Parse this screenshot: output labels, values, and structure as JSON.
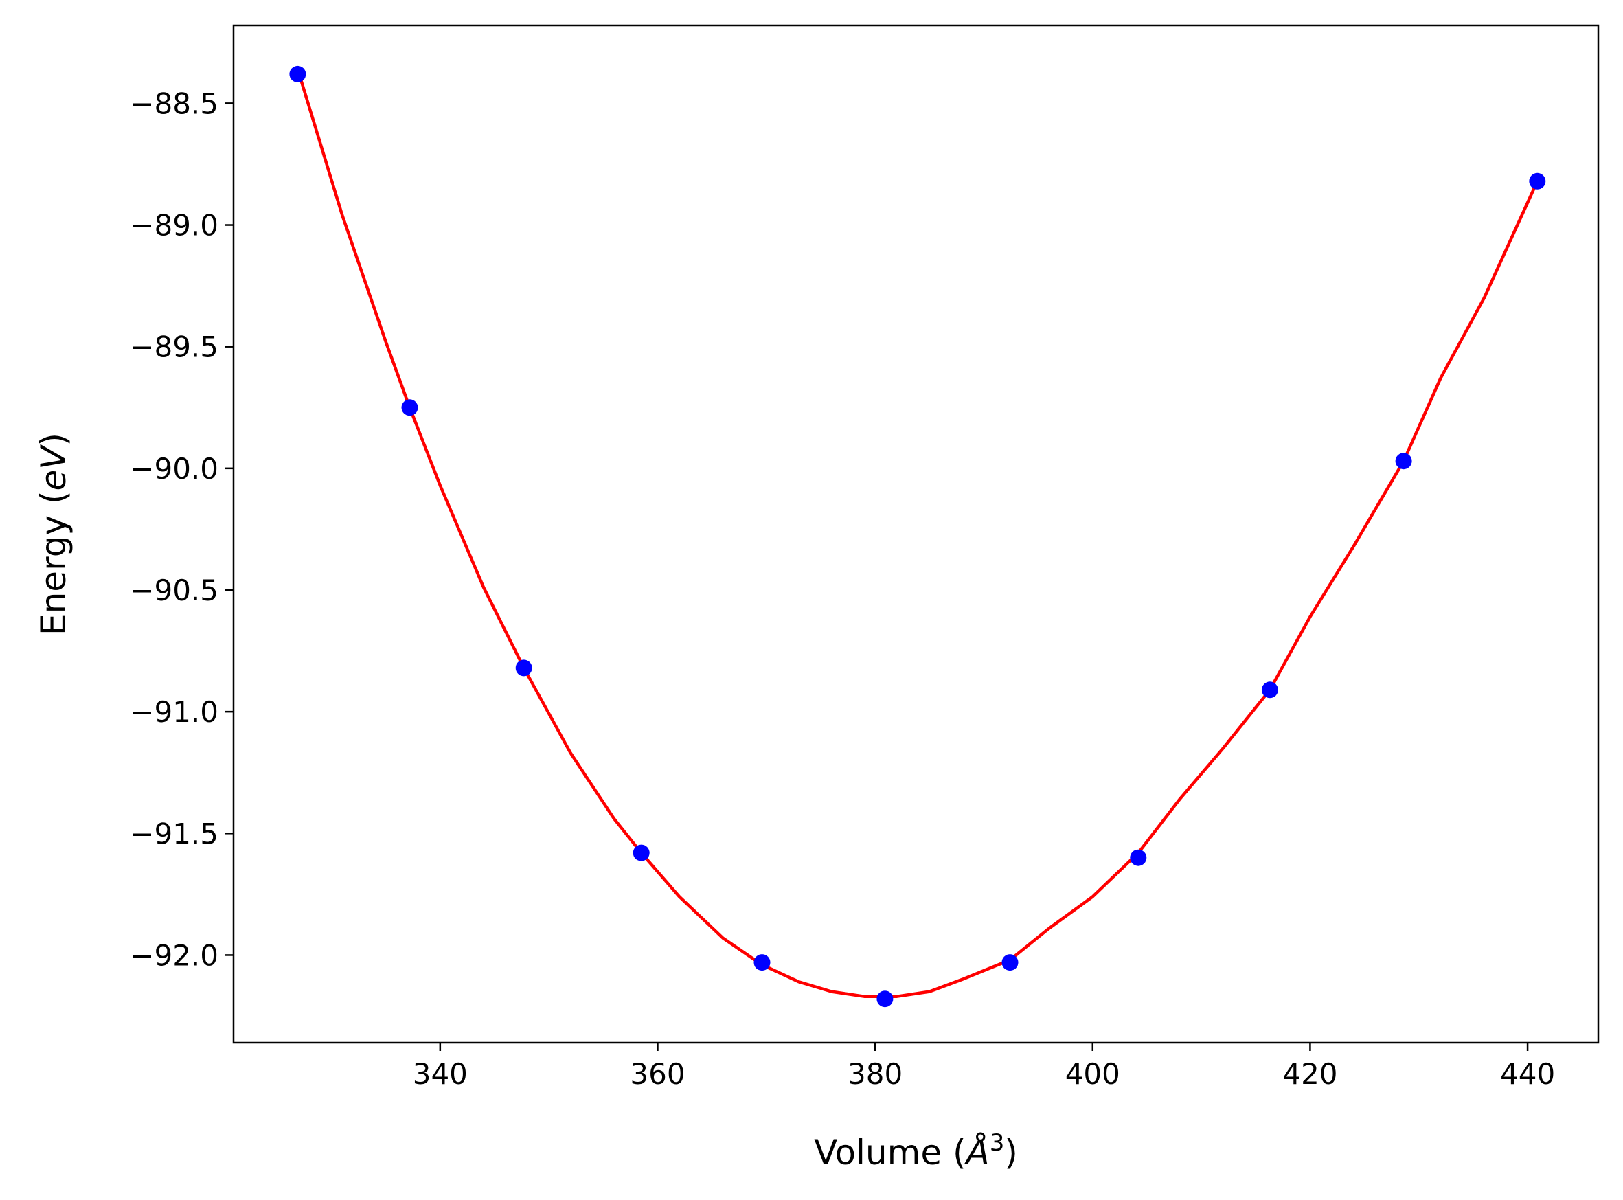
{
  "chart_data": {
    "type": "scatter",
    "xlabel": {
      "text": "Volume (",
      "italic": "Å",
      "sup": "3",
      "suffix": ")"
    },
    "ylabel": {
      "text": "Energy (",
      "italic": "eV",
      "suffix": ")"
    },
    "xlim": [
      321.0,
      446.5
    ],
    "ylim": [
      -92.36,
      -88.18
    ],
    "xticks": [
      340,
      360,
      380,
      400,
      420,
      440
    ],
    "xtick_labels": [
      "340",
      "360",
      "380",
      "400",
      "420",
      "440"
    ],
    "yticks": [
      -88.5,
      -89.0,
      -89.5,
      -90.0,
      -90.5,
      -91.0,
      -91.5,
      -92.0
    ],
    "ytick_labels": [
      "−88.5",
      "−89.0",
      "−89.5",
      "−90.0",
      "−90.5",
      "−91.0",
      "−91.5",
      "−92.0"
    ],
    "grid": false,
    "series": [
      {
        "kind": "points",
        "color": "#0000ff",
        "x": [
          326.9,
          337.2,
          347.7,
          358.5,
          369.6,
          380.9,
          392.4,
          404.2,
          416.3,
          428.6,
          440.9
        ],
        "y": [
          -88.38,
          -89.75,
          -90.82,
          -91.58,
          -92.03,
          -92.18,
          -92.03,
          -91.6,
          -90.91,
          -89.97,
          -88.82
        ]
      },
      {
        "kind": "fit-curve",
        "color": "#ff0000",
        "x": [
          326.9,
          331.0,
          335.0,
          337.2,
          340.0,
          344.0,
          347.7,
          352.0,
          356.0,
          358.5,
          362.0,
          366.0,
          369.6,
          373.0,
          376.0,
          379.0,
          380.5,
          382.0,
          385.0,
          388.0,
          392.4,
          396.0,
          400.0,
          404.2,
          408.0,
          412.0,
          416.3,
          420.0,
          424.0,
          428.6,
          432.0,
          436.0,
          440.9
        ],
        "y": [
          -88.36,
          -88.96,
          -89.48,
          -89.75,
          -90.07,
          -90.49,
          -90.82,
          -91.17,
          -91.44,
          -91.58,
          -91.76,
          -91.93,
          -92.04,
          -92.11,
          -92.15,
          -92.17,
          -92.17,
          -92.17,
          -92.15,
          -92.1,
          -92.02,
          -91.89,
          -91.76,
          -91.58,
          -91.36,
          -91.15,
          -90.91,
          -90.61,
          -90.32,
          -89.97,
          -89.63,
          -89.3,
          -88.82
        ]
      }
    ]
  }
}
